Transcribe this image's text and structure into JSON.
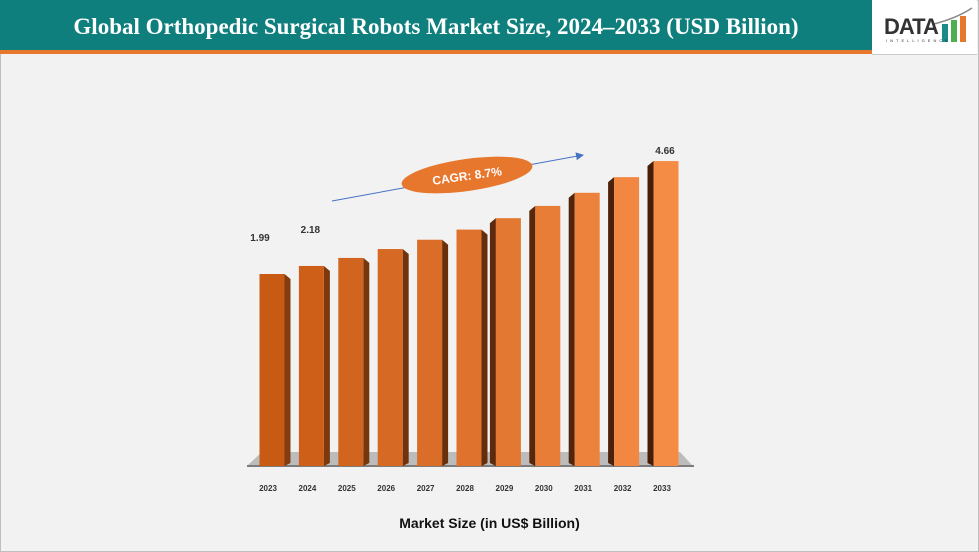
{
  "header": {
    "title": "Global Orthopedic Surgical Robots Market Size, 2024–2033 (USD Billion)"
  },
  "logo": {
    "text": "DATA",
    "subtext": "INTELLIGENCE"
  },
  "chart_data": {
    "type": "bar",
    "title": "Global Orthopedic Surgical Robots Market Size, 2024–2033 (USD Billion)",
    "xlabel": "Market Size (in US$ Billion)",
    "ylabel": "",
    "categories": [
      "2023",
      "2024",
      "2025",
      "2026",
      "2027",
      "2028",
      "2029",
      "2030",
      "2031",
      "2032",
      "2033"
    ],
    "values": [
      1.99,
      2.18,
      2.37,
      2.58,
      2.8,
      3.04,
      3.31,
      3.6,
      3.91,
      4.28,
      4.66
    ],
    "data_labels": {
      "0": "1.99",
      "1": "2.18",
      "10": "4.66"
    },
    "annotation": "CAGR: 8.7%",
    "grid": false,
    "colors": {
      "bar": "#e06f20",
      "bar_side": "#5a2a08",
      "floor": "#bcbcbc",
      "annotation": "#e8772e",
      "arrow": "#4472c4"
    }
  }
}
